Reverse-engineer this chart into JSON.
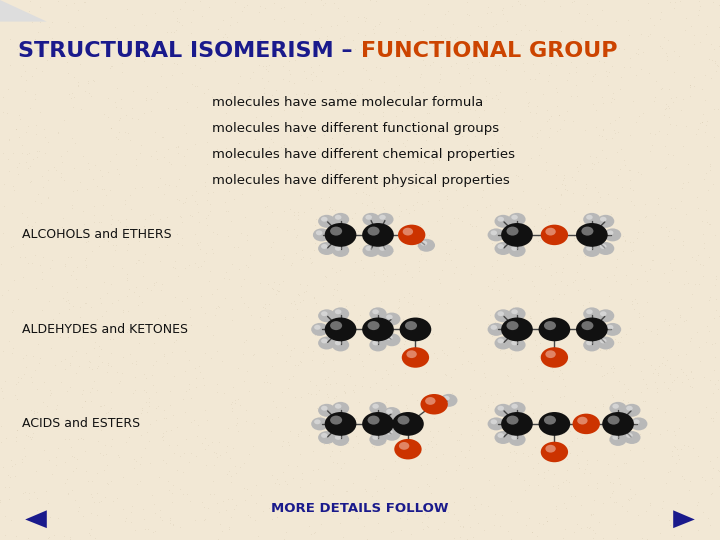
{
  "bg_color": "#f2e8d5",
  "title_part1": "STRUCTURAL ISOMERISM – ",
  "title_part2": "FUNCTIONAL GROUP",
  "title_color1": "#1a1a8c",
  "title_color2": "#cc4400",
  "title_fontsize": 16,
  "bullets": [
    "molecules have same molecular formula",
    "molecules have different functional groups",
    "molecules have different chemical properties",
    "molecules have different physical properties"
  ],
  "bullet_fontsize": 9.5,
  "bullet_color": "#111111",
  "labels": [
    "ALCOHOLS and ETHERS",
    "ALDEHYDES and KETONES",
    "ACIDS and ESTERS"
  ],
  "label_color": "#111111",
  "label_fontsize": 9,
  "footer": "MORE DETAILS FOLLOW",
  "footer_color": "#1a1a8c",
  "footer_fontsize": 9.5,
  "nav_color": "#1a1a8c",
  "carbon_color": "#111111",
  "oxygen_color": "#cc3300",
  "hydrogen_color": "#b8b8b8",
  "carbon_r": 0.022,
  "oxygen_r": 0.019,
  "hydrogen_r": 0.012
}
